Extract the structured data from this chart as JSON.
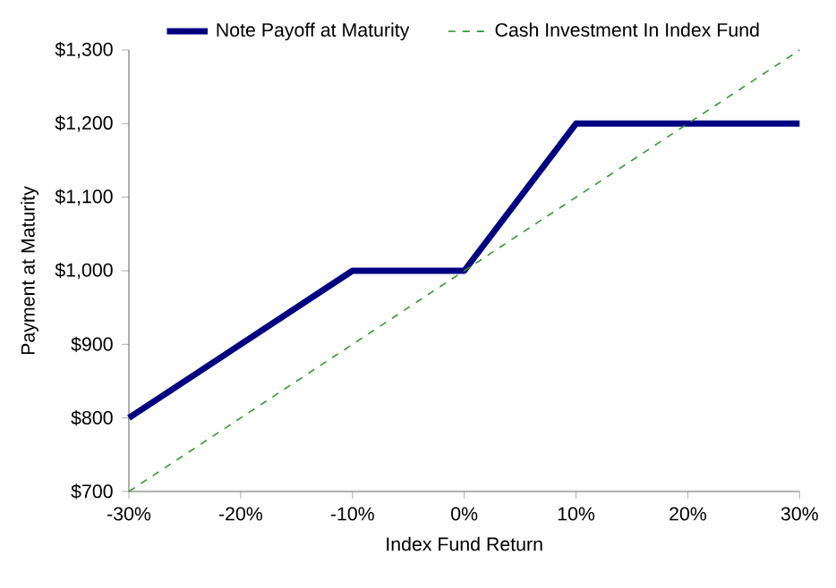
{
  "chart_data": {
    "type": "line",
    "xlabel": "Index Fund Return",
    "ylabel": "Payment at Maturity",
    "series": [
      {
        "name": "Note Payoff at Maturity",
        "color": "#000080",
        "x": [
          -30,
          -10,
          0,
          10,
          30
        ],
        "values": [
          800,
          1000,
          1000,
          1200,
          1200
        ],
        "line_style": "solid"
      },
      {
        "name": "Cash Investment In Index Fund",
        "color": "#339933",
        "x": [
          -30,
          30
        ],
        "values": [
          700,
          1300
        ],
        "line_style": "dashed"
      }
    ],
    "xlim": [
      -30,
      30
    ],
    "ylim": [
      700,
      1300
    ],
    "xticks": [
      {
        "value": -30,
        "label": "-30%"
      },
      {
        "value": -20,
        "label": "-20%"
      },
      {
        "value": -10,
        "label": "-10%"
      },
      {
        "value": 0,
        "label": "0%"
      },
      {
        "value": 10,
        "label": "10%"
      },
      {
        "value": 20,
        "label": "20%"
      },
      {
        "value": 30,
        "label": "30%"
      }
    ],
    "yticks": [
      {
        "value": 700,
        "label": "$700"
      },
      {
        "value": 800,
        "label": "$800"
      },
      {
        "value": 900,
        "label": "$900"
      },
      {
        "value": 1000,
        "label": "$1,000"
      },
      {
        "value": 1100,
        "label": "$1,100"
      },
      {
        "value": 1200,
        "label": "$1,200"
      },
      {
        "value": 1300,
        "label": "$1,300"
      }
    ],
    "grid": false,
    "legend": "top",
    "marker": "none"
  }
}
